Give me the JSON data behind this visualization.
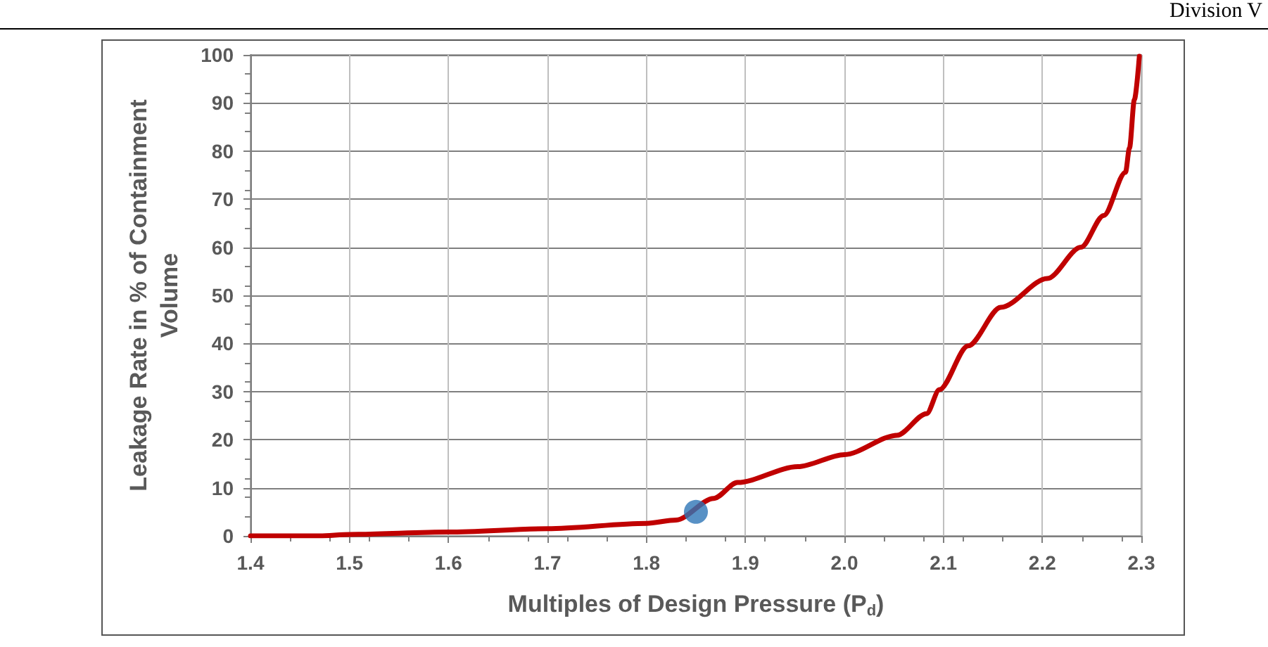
{
  "chart_data": {
    "type": "line",
    "xlabel": "Multiples of Design Pressure (P$_{d}$)",
    "ylabel": "Leakage Rate in % of Containment\nVolume",
    "annotations": [
      "Division V"
    ],
    "xlim": [
      1.4,
      2.3
    ],
    "xticks": [
      1.4,
      1.5,
      1.6,
      1.7,
      1.8,
      1.9,
      {
        "value": 2,
        "label": "2.0"
      },
      2.1,
      2.2,
      2.3
    ],
    "ylim": [
      0,
      100
    ],
    "yticks": [
      0,
      10,
      20,
      30,
      40,
      50,
      60,
      70,
      80,
      90,
      100
    ],
    "grid": true,
    "marker": "none",
    "line_style": "solid",
    "series": [
      {
        "color": "#c00000",
        "x": [
          1.4,
          1.47,
          1.5,
          1.6,
          1.7,
          1.8,
          1.83,
          1.868,
          1.892,
          1.953,
          2.0,
          2.053,
          2.083,
          2.096,
          2.125,
          2.158,
          2.205,
          2.239,
          2.262,
          2.284,
          2.288,
          2.293,
          2.298
        ],
        "values": [
          0,
          0,
          0.3,
          0.8,
          1.5,
          2.6,
          3.3,
          7.8,
          11.1,
          14.4,
          16.9,
          20.9,
          25.4,
          30.4,
          39.5,
          47.5,
          53.5,
          60,
          66.6,
          75.6,
          80.6,
          90.7,
          99.7
        ]
      },
      {
        "type": "scatter",
        "marker": "circle",
        "color": "#2e75b6",
        "x": [
          1.85
        ],
        "values": [
          5
        ]
      }
    ]
  }
}
